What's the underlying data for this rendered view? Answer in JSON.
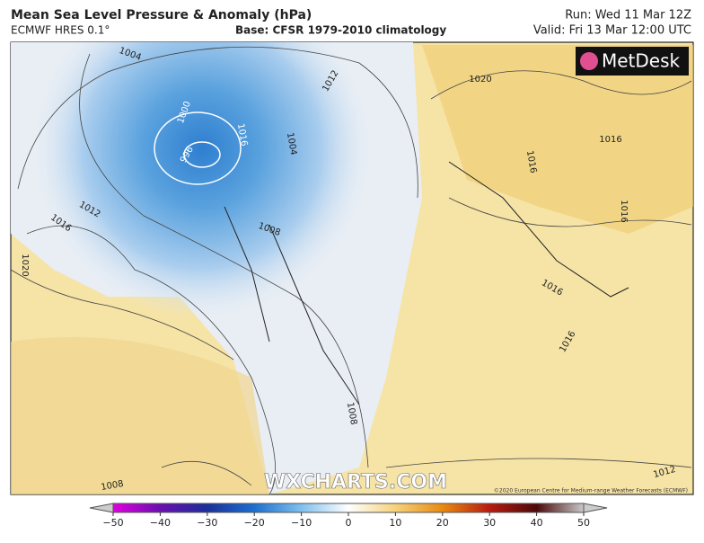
{
  "header": {
    "title": "Mean Sea Level Pressure & Anomaly (hPa)",
    "model": "ECMWF HRES 0.1°",
    "base": "Base: CFSR 1979-2010 climatology",
    "run": "Run: Wed 11 Mar 12Z",
    "valid": "Valid: Fri 13 Mar 12:00 UTC"
  },
  "logo": "MetDesk",
  "watermark": "WXCHARTS.COM",
  "copyright": "©2020 European Centre for Medium-range Weather Forecasts (ECMWF)",
  "contour_labels": [
    "1020",
    "1012",
    "1004",
    "1000",
    "996",
    "1016",
    "1004",
    "1008",
    "1012",
    "1016",
    "1020",
    "1016",
    "1016",
    "1016",
    "1016",
    "1016",
    "1008",
    "1008",
    "1012"
  ],
  "colorbar": {
    "lim": [
      -50,
      50
    ],
    "ticks": [
      {
        "value": -50,
        "label": "−50"
      },
      {
        "value": -40,
        "label": "−40"
      },
      {
        "value": -30,
        "label": "−30"
      },
      {
        "value": -20,
        "label": "−20"
      },
      {
        "value": -10,
        "label": "−10"
      },
      0,
      10,
      20,
      30,
      40,
      50
    ]
  }
}
